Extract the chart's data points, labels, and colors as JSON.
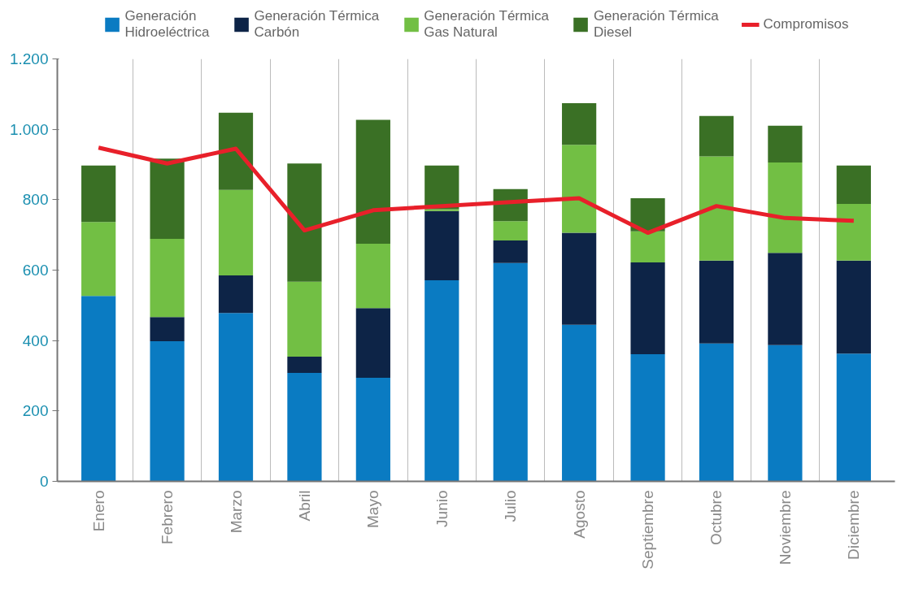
{
  "chart_data": {
    "type": "bar",
    "stacked": true,
    "categories": [
      "Enero",
      "Febrero",
      "Marzo",
      "Abril",
      "Mayo",
      "Junio",
      "Julio",
      "Agosto",
      "Septiembre",
      "Octubre",
      "Noviembre",
      "Diciembre"
    ],
    "series": [
      {
        "name": "Generación\nHidroeléctrica",
        "color": "#0a7bc2",
        "values": [
          527,
          398,
          478,
          308,
          294,
          571,
          620,
          445,
          361,
          392,
          387,
          363
        ]
      },
      {
        "name": "Generación Térmica\nCarbón",
        "color": "#0d2447",
        "values": [
          0,
          69,
          107,
          46,
          198,
          197,
          64,
          261,
          261,
          235,
          262,
          264
        ]
      },
      {
        "name": "Generación Térmica\nGas Natural",
        "color": "#72bf44",
        "values": [
          210,
          222,
          243,
          213,
          183,
          5,
          55,
          250,
          88,
          296,
          257,
          161
        ]
      },
      {
        "name": "Generación Térmica\nDiesel",
        "color": "#3a7025",
        "values": [
          160,
          228,
          219,
          336,
          352,
          124,
          91,
          118,
          94,
          115,
          104,
          109
        ]
      },
      {
        "name": "Compromisos",
        "type": "line",
        "color": "#e8202a",
        "values": [
          948,
          903,
          945,
          713,
          770,
          782,
          793,
          804,
          706,
          782,
          748,
          740
        ]
      }
    ],
    "ylim": [
      0,
      1200
    ],
    "yticks": [
      0,
      200,
      400,
      600,
      800,
      {
        "value": 1000,
        "label": "1.000"
      },
      {
        "value": 1200,
        "label": "1.200"
      }
    ],
    "grid": "x",
    "legend": "top",
    "marker": "none",
    "line_style": "solid"
  }
}
